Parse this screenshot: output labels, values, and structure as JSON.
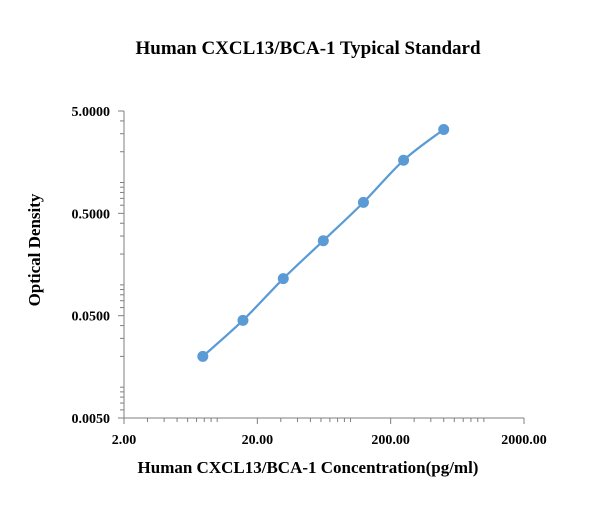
{
  "chart_data": {
    "type": "line",
    "title": "Human CXCL13/BCA-1 Typical Standard",
    "xlabel": "Human CXCL13/BCA-1 Concentration(pg/ml)",
    "ylabel": "Optical Density",
    "x_scale": "log",
    "y_scale": "log",
    "xlim": [
      2,
      2000
    ],
    "ylim": [
      0.005,
      5
    ],
    "x_tick_labels": [
      "2.00",
      "20.00",
      "200.00",
      "2000.00"
    ],
    "y_tick_labels": [
      "5.0000",
      "0.5000",
      "0.0500",
      "0.0050"
    ],
    "grid": false,
    "series": [
      {
        "color": "#5b9bd5",
        "points": [
          {
            "x": 7.8,
            "y": 0.02
          },
          {
            "x": 15.6,
            "y": 0.045
          },
          {
            "x": 31.3,
            "y": 0.115
          },
          {
            "x": 62.5,
            "y": 0.27
          },
          {
            "x": 125,
            "y": 0.64
          },
          {
            "x": 250,
            "y": 1.65
          },
          {
            "x": 500,
            "y": 3.3
          }
        ]
      }
    ]
  }
}
